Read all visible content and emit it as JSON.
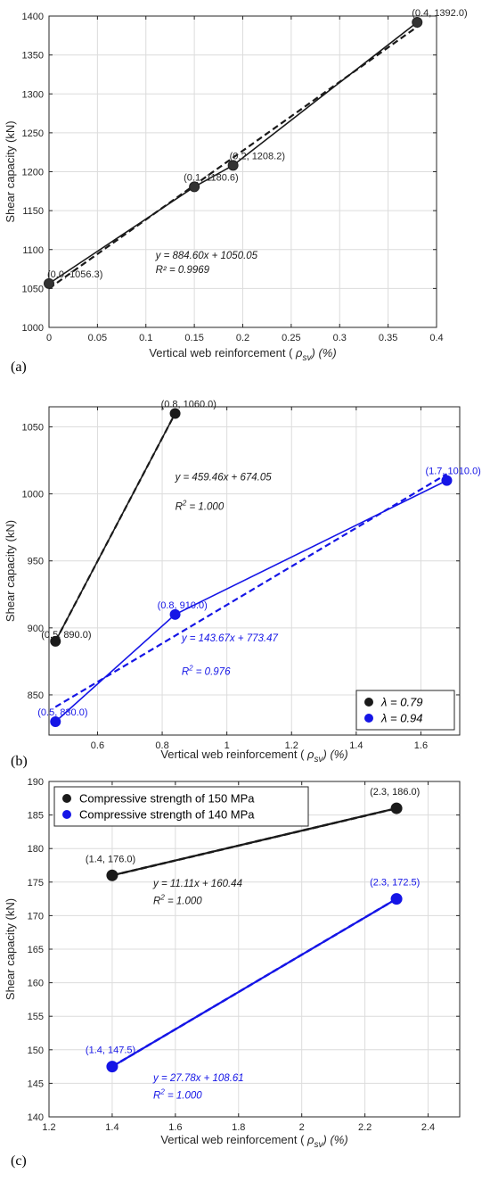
{
  "colors": {
    "black": "#1a1a1a",
    "blue": "#1515e6",
    "axis": "#262626",
    "grid": "#dcdcdc"
  },
  "chart_data": [
    {
      "panel": "(a)",
      "type": "line",
      "xlabel": "Vertical web reinforcement ( ρsv) (%)",
      "xlabel_main": "Vertical web reinforcement ( ",
      "xlabel_sym": "ρ",
      "xlabel_sub": "sv",
      "xlabel_end": ") (%)",
      "ylabel": "Shear capacity (kN)",
      "xlim": [
        0,
        0.4
      ],
      "ylim": [
        1000,
        1400
      ],
      "xticks": [
        0,
        0.05,
        0.1,
        0.15,
        0.2,
        0.25,
        0.3,
        0.35,
        0.4
      ],
      "yticks": [
        1000,
        1050,
        1100,
        1150,
        1200,
        1250,
        1300,
        1350,
        1400
      ],
      "grid": true,
      "series": [
        {
          "color": "black",
          "x": [
            0,
            0.15,
            0.19,
            0.38
          ],
          "y": [
            1056.3,
            1180.6,
            1208.2,
            1392.0
          ],
          "point_labels": [
            "(0.0, 1056.3)",
            "(0.1, 1180.6)",
            "(0.2, 1208.2)",
            "(0.4, 1392.0)"
          ],
          "fit": {
            "slope": 884.6,
            "intercept": 1050.05,
            "x_range": [
              0,
              0.38
            ]
          },
          "equation": "y = 884.60x + 1050.05",
          "r2": "R² = 0.9969",
          "eq_pos": [
            0.11,
            1088
          ],
          "r2_pos": [
            0.11,
            1070
          ]
        }
      ]
    },
    {
      "panel": "(b)",
      "type": "line",
      "xlabel": "Vertical web reinforcement ( ρsv) (%)",
      "xlabel_main": "Vertical web reinforcement ( ",
      "xlabel_sym": "ρ",
      "xlabel_sub": "sv",
      "xlabel_end": ") (%)",
      "ylabel": "Shear capacity (kN)",
      "xlim": [
        0.45,
        1.72
      ],
      "ylim": [
        820,
        1065
      ],
      "xticks": [
        0.6,
        0.8,
        1,
        1.2,
        1.4,
        1.6
      ],
      "yticks": [
        850,
        900,
        950,
        1000,
        1050
      ],
      "grid": true,
      "legend_position": "bottom-right",
      "series": [
        {
          "name": "λ = 0.79",
          "color": "black",
          "x": [
            0.47,
            0.84
          ],
          "y": [
            890.0,
            1060.0
          ],
          "point_labels": [
            "(0.5, 890.0)",
            "(0.8, 1060.0)"
          ],
          "fit": {
            "slope": 459.46,
            "intercept": 674.05,
            "x_range": [
              0.47,
              0.84
            ]
          },
          "equation": "y = 459.46x + 674.05",
          "r2": "R",
          "r2_value": " = 1.000",
          "eq_pos": [
            0.84,
            1010
          ],
          "r2_pos": [
            0.84,
            988
          ]
        },
        {
          "name": "λ = 0.94",
          "color": "blue",
          "x": [
            0.47,
            0.84,
            1.68
          ],
          "y": [
            830.0,
            910.0,
            1010.0
          ],
          "point_labels": [
            "(0.5, 830.0)",
            "(0.8, 910.0)",
            "(1.7, 1010.0)"
          ],
          "fit": {
            "slope": 143.67,
            "intercept": 773.47,
            "x_range": [
              0.47,
              1.68
            ]
          },
          "equation": "y = 143.67x + 773.47",
          "r2": "R",
          "r2_value": " = 0.976",
          "eq_pos": [
            0.86,
            890
          ],
          "r2_pos": [
            0.86,
            865
          ]
        }
      ]
    },
    {
      "panel": "(c)",
      "type": "line",
      "xlabel": "Vertical web reinforcement ( ρsv) (%)",
      "xlabel_main": "Vertical web reinforcement ( ",
      "xlabel_sym": "ρ",
      "xlabel_sub": "sv",
      "xlabel_end": ") (%)",
      "ylabel": "Shear capacity (kN)",
      "xlim": [
        1.2,
        2.5
      ],
      "ylim": [
        140,
        190
      ],
      "xticks": [
        1.2,
        1.4,
        1.6,
        1.8,
        2,
        2.2,
        2.4
      ],
      "yticks": [
        140,
        145,
        150,
        155,
        160,
        165,
        170,
        175,
        180,
        185,
        190
      ],
      "grid": true,
      "legend_position": "top-left",
      "series": [
        {
          "name": "Compressive strength of 150 MPa",
          "color": "black",
          "x": [
            1.4,
            2.3
          ],
          "y": [
            176.0,
            186.0
          ],
          "point_labels": [
            "(1.4, 176.0)",
            "(2.3, 186.0)"
          ],
          "fit": {
            "slope": 11.11,
            "intercept": 160.44,
            "x_range": [
              1.4,
              2.3
            ]
          },
          "equation": "y = 11.11x + 160.44",
          "r2": "R",
          "r2_value": " = 1.000",
          "eq_pos": [
            1.53,
            174.3
          ],
          "r2_pos": [
            1.53,
            171.7
          ]
        },
        {
          "name": "Compressive strength of 140 MPa",
          "color": "blue",
          "x": [
            1.4,
            2.3
          ],
          "y": [
            147.5,
            172.5
          ],
          "point_labels": [
            "(1.4, 147.5)",
            "(2.3, 172.5)"
          ],
          "fit": {
            "slope": 27.78,
            "intercept": 108.61,
            "x_range": [
              1.4,
              2.3
            ]
          },
          "equation": "y = 27.78x + 108.61",
          "r2": "R",
          "r2_value": " = 1.000",
          "eq_pos": [
            1.53,
            145.3
          ],
          "r2_pos": [
            1.53,
            142.7
          ]
        }
      ]
    }
  ]
}
